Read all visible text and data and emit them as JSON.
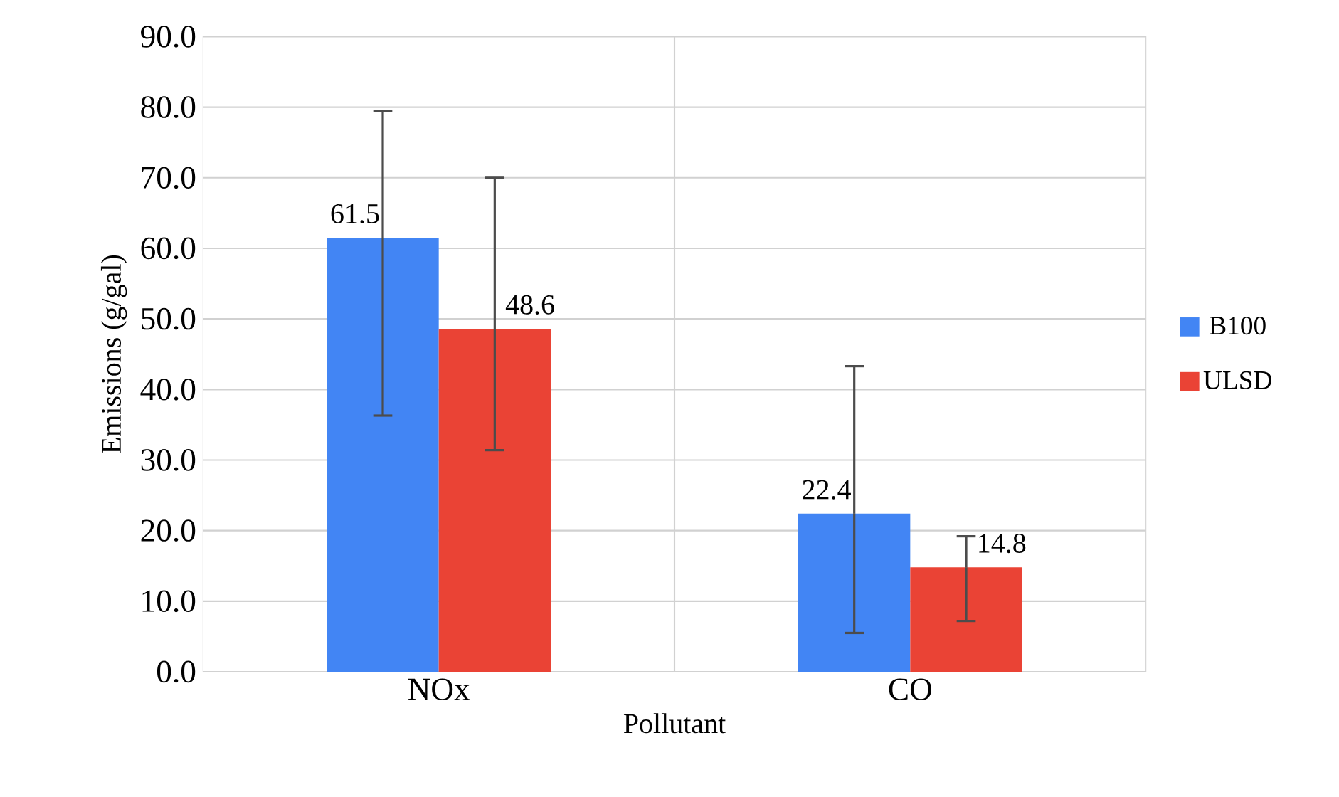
{
  "chart_data": {
    "type": "bar",
    "xlabel": "Pollutant",
    "ylabel": "Emissions (g/gal)",
    "categories": [
      "NOx",
      "CO"
    ],
    "series": [
      {
        "name": "B100",
        "color": "#4285f4",
        "values": [
          61.5,
          22.4
        ],
        "value_labels": [
          "61.5",
          "22.4"
        ],
        "errors": [
          [
            36.3,
            79.5
          ],
          [
            5.5,
            43.3
          ]
        ]
      },
      {
        "name": "ULSD",
        "color": "#ea4335",
        "values": [
          48.6,
          14.8
        ],
        "value_labels": [
          "48.6",
          "14.8"
        ],
        "errors": [
          [
            31.4,
            70.0
          ],
          [
            7.2,
            19.2
          ]
        ]
      }
    ],
    "ylim": [
      0,
      90
    ],
    "yticks": [
      {
        "value": 0,
        "label": "0.0"
      },
      {
        "value": 10,
        "label": "10.0"
      },
      {
        "value": 20,
        "label": "20.0"
      },
      {
        "value": 30,
        "label": "30.0"
      },
      {
        "value": 40,
        "label": "40.0"
      },
      {
        "value": 50,
        "label": "50.0"
      },
      {
        "value": 60,
        "label": "60.0"
      },
      {
        "value": 70,
        "label": "70.0"
      },
      {
        "value": 80,
        "label": "80.0"
      },
      {
        "value": 90,
        "label": "90.0"
      }
    ],
    "grid": true,
    "legend": "right"
  }
}
